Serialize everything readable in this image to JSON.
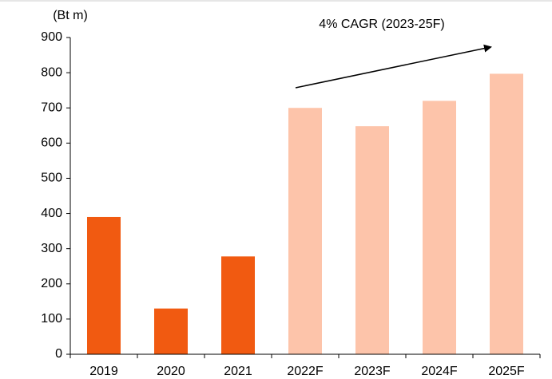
{
  "chart_data": {
    "type": "bar",
    "y_label": "(Bt m)",
    "annotation": "4% CAGR (2023-25F)",
    "categories": [
      "2019",
      "2020",
      "2021",
      "2022F",
      "2023F",
      "2024F",
      "2025F"
    ],
    "values": [
      390,
      130,
      278,
      700,
      648,
      720,
      797
    ],
    "colors": [
      "#f15a11",
      "#f15a11",
      "#f15a11",
      "#fdc4aa",
      "#fdc4aa",
      "#fdc4aa",
      "#fdc4aa"
    ],
    "ylim": [
      0,
      900
    ],
    "yticks": [
      0,
      100,
      200,
      300,
      400,
      500,
      600,
      700,
      800,
      900
    ],
    "grid": false
  }
}
